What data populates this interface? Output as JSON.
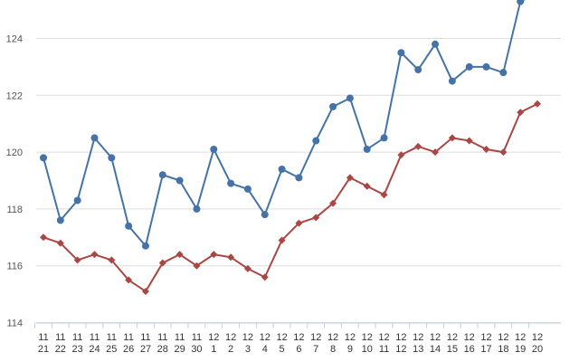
{
  "chart_data": {
    "type": "line",
    "categories": [
      [
        "11",
        "21"
      ],
      [
        "11",
        "22"
      ],
      [
        "11",
        "23"
      ],
      [
        "11",
        "24"
      ],
      [
        "11",
        "25"
      ],
      [
        "11",
        "26"
      ],
      [
        "11",
        "27"
      ],
      [
        "11",
        "28"
      ],
      [
        "11",
        "29"
      ],
      [
        "11",
        "30"
      ],
      [
        "12",
        "1"
      ],
      [
        "12",
        "2"
      ],
      [
        "12",
        "3"
      ],
      [
        "12",
        "4"
      ],
      [
        "12",
        "5"
      ],
      [
        "12",
        "6"
      ],
      [
        "12",
        "7"
      ],
      [
        "12",
        "8"
      ],
      [
        "12",
        "9"
      ],
      [
        "12",
        "10"
      ],
      [
        "12",
        "11"
      ],
      [
        "12",
        "12"
      ],
      [
        "12",
        "13"
      ],
      [
        "12",
        "14"
      ],
      [
        "12",
        "15"
      ],
      [
        "12",
        "16"
      ],
      [
        "12",
        "17"
      ],
      [
        "12",
        "18"
      ],
      [
        "12",
        "19"
      ],
      [
        "12",
        "20"
      ]
    ],
    "series": [
      {
        "color": "#4572A7",
        "marker": "circle",
        "values": [
          119.8,
          117.6,
          118.3,
          120.5,
          119.8,
          117.4,
          116.7,
          119.2,
          119.0,
          118.0,
          120.1,
          118.9,
          118.7,
          117.8,
          119.4,
          119.1,
          120.4,
          121.6,
          121.9,
          120.1,
          120.5,
          123.5,
          122.9,
          123.8,
          122.5,
          123.0,
          123.0,
          122.8,
          125.3,
          125.6
        ]
      },
      {
        "color": "#AA4643",
        "marker": "diamond",
        "values": [
          117.0,
          116.8,
          116.2,
          116.4,
          116.2,
          115.5,
          115.1,
          116.1,
          116.4,
          116.0,
          116.4,
          116.3,
          115.9,
          115.6,
          116.9,
          117.5,
          117.7,
          118.2,
          119.1,
          118.8,
          118.5,
          119.9,
          120.2,
          120.0,
          120.5,
          120.4,
          120.1,
          120.0,
          121.4,
          121.7
        ]
      }
    ],
    "yticks": [
      114,
      116,
      118,
      120,
      122,
      124
    ],
    "ylim": [
      114,
      125.5
    ],
    "grid": true,
    "legend": "none",
    "title": "",
    "xlabel": "",
    "ylabel": ""
  }
}
